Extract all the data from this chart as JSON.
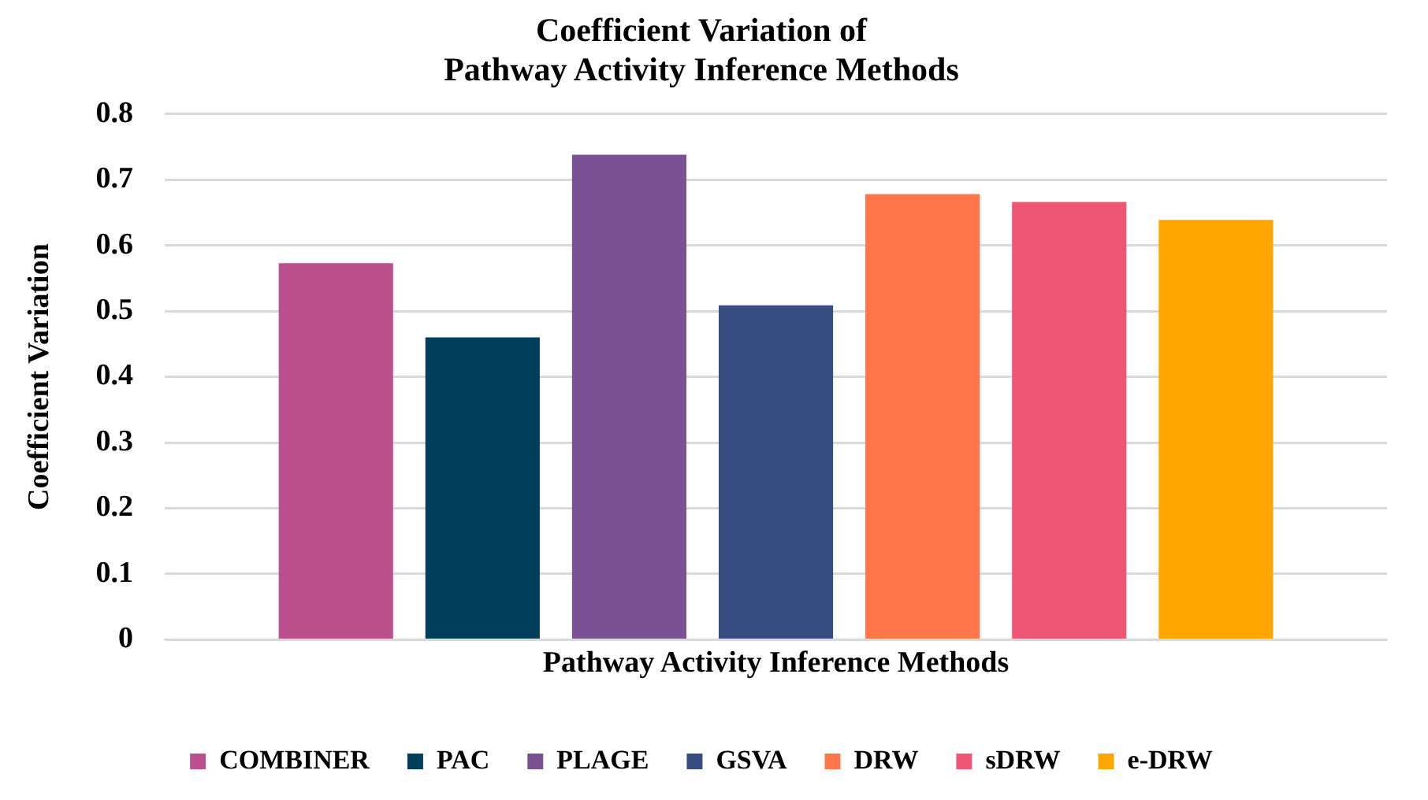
{
  "chart_data": {
    "type": "bar",
    "title": "Coefficient Variation of\nPathway Activity Inference Methods",
    "xlabel": "Pathway Activity Inference Methods",
    "ylabel": "Coefficient Variation",
    "categories": [
      null
    ],
    "series": [
      {
        "name": "COMBINER",
        "color": "#bc508f",
        "values": [
          0.573
        ]
      },
      {
        "name": "PAC",
        "color": "#003f5c",
        "values": [
          0.46
        ]
      },
      {
        "name": "PLAGE",
        "color": "#7a5195",
        "values": [
          0.738
        ]
      },
      {
        "name": "GSVA",
        "color": "#374c80",
        "values": [
          0.509
        ]
      },
      {
        "name": "DRW",
        "color": "#ff764a",
        "values": [
          0.678
        ]
      },
      {
        "name": "sDRW",
        "color": "#ef5675",
        "values": [
          0.666
        ]
      },
      {
        "name": "e-DRW",
        "color": "#ffa600",
        "values": [
          0.639
        ]
      }
    ],
    "ylim": [
      0,
      0.8
    ],
    "yticks": [
      0,
      0.1,
      0.2,
      0.3,
      0.4,
      0.5,
      0.6,
      0.7,
      0.8
    ],
    "grid": "y",
    "legend": "bottom"
  }
}
